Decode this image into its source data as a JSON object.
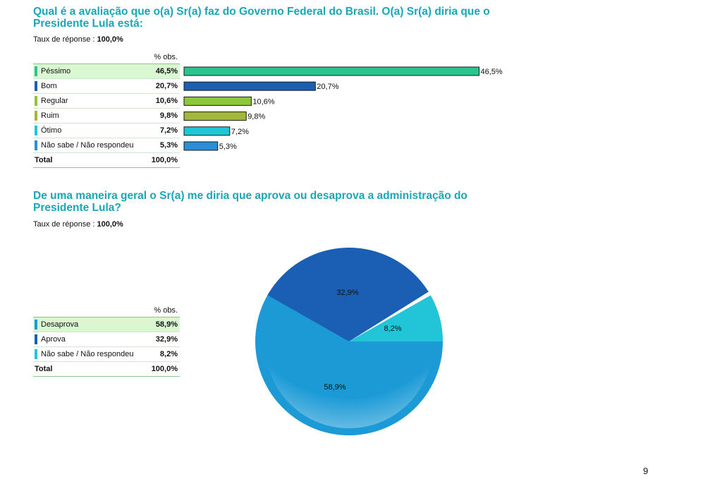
{
  "q1": {
    "title_line1": "Qual é a avaliação que o(a) Sr(a) faz do Governo Federal do Brasil. O(a) Sr(a) diria que o",
    "title_line2": "Presidente Lula está:",
    "rate_label": "Taux de réponse : ",
    "rate_value": "100,0%",
    "col_header": "% obs.",
    "rows": [
      {
        "label": "Péssimo",
        "value": "46,5%",
        "color": "#2bc48f"
      },
      {
        "label": "Bom",
        "value": "20,7%",
        "color": "#1a5fb4"
      },
      {
        "label": "Regular",
        "value": "10,6%",
        "color": "#8cc63f"
      },
      {
        "label": "Ruim",
        "value": "9,8%",
        "color": "#a3b83a"
      },
      {
        "label": "Ótimo",
        "value": "7,2%",
        "color": "#22c4d8"
      },
      {
        "label": "Não sabe / Não respondeu",
        "value": "5,3%",
        "color": "#2a8fd6"
      }
    ],
    "total_label": "Total",
    "total_value": "100,0%"
  },
  "q2": {
    "title_line1": "De uma maneira geral o Sr(a) me diria que aprova ou desaprova a administração do",
    "title_line2": "Presidente Lula?",
    "rate_label": "Taux de réponse : ",
    "rate_value": "100,0%",
    "col_header": "% obs.",
    "rows": [
      {
        "label": "Desaprova",
        "value": "58,9%",
        "color": "#1b9ad6"
      },
      {
        "label": "Aprova",
        "value": "32,9%",
        "color": "#1a5fb4"
      },
      {
        "label": "Não sabe / Não respondeu",
        "value": "8,2%",
        "color": "#22c4d8"
      }
    ],
    "total_label": "Total",
    "total_value": "100,0%"
  },
  "chart_data": [
    {
      "type": "bar",
      "orientation": "horizontal",
      "categories": [
        "Péssimo",
        "Bom",
        "Regular",
        "Ruim",
        "Ótimo",
        "Não sabe / Não respondeu"
      ],
      "values": [
        46.5,
        20.7,
        10.6,
        9.8,
        7.2,
        5.3
      ],
      "value_labels": [
        "46,5%",
        "20,7%",
        "10,6%",
        "9,8%",
        "7,2%",
        "5,3%"
      ],
      "colors": [
        "#2bc48f",
        "#1a5fb4",
        "#8cc63f",
        "#a3b83a",
        "#22c4d8",
        "#2a8fd6"
      ]
    },
    {
      "type": "pie",
      "categories": [
        "Desaprova",
        "Aprova",
        "Não sabe / Não respondeu"
      ],
      "values": [
        58.9,
        32.9,
        8.2
      ],
      "value_labels": [
        "58,9%",
        "32,9%",
        "8,2%"
      ],
      "colors": [
        "#1b9ad6",
        "#1a5fb4",
        "#22c4d8"
      ]
    }
  ],
  "page_number": "9"
}
